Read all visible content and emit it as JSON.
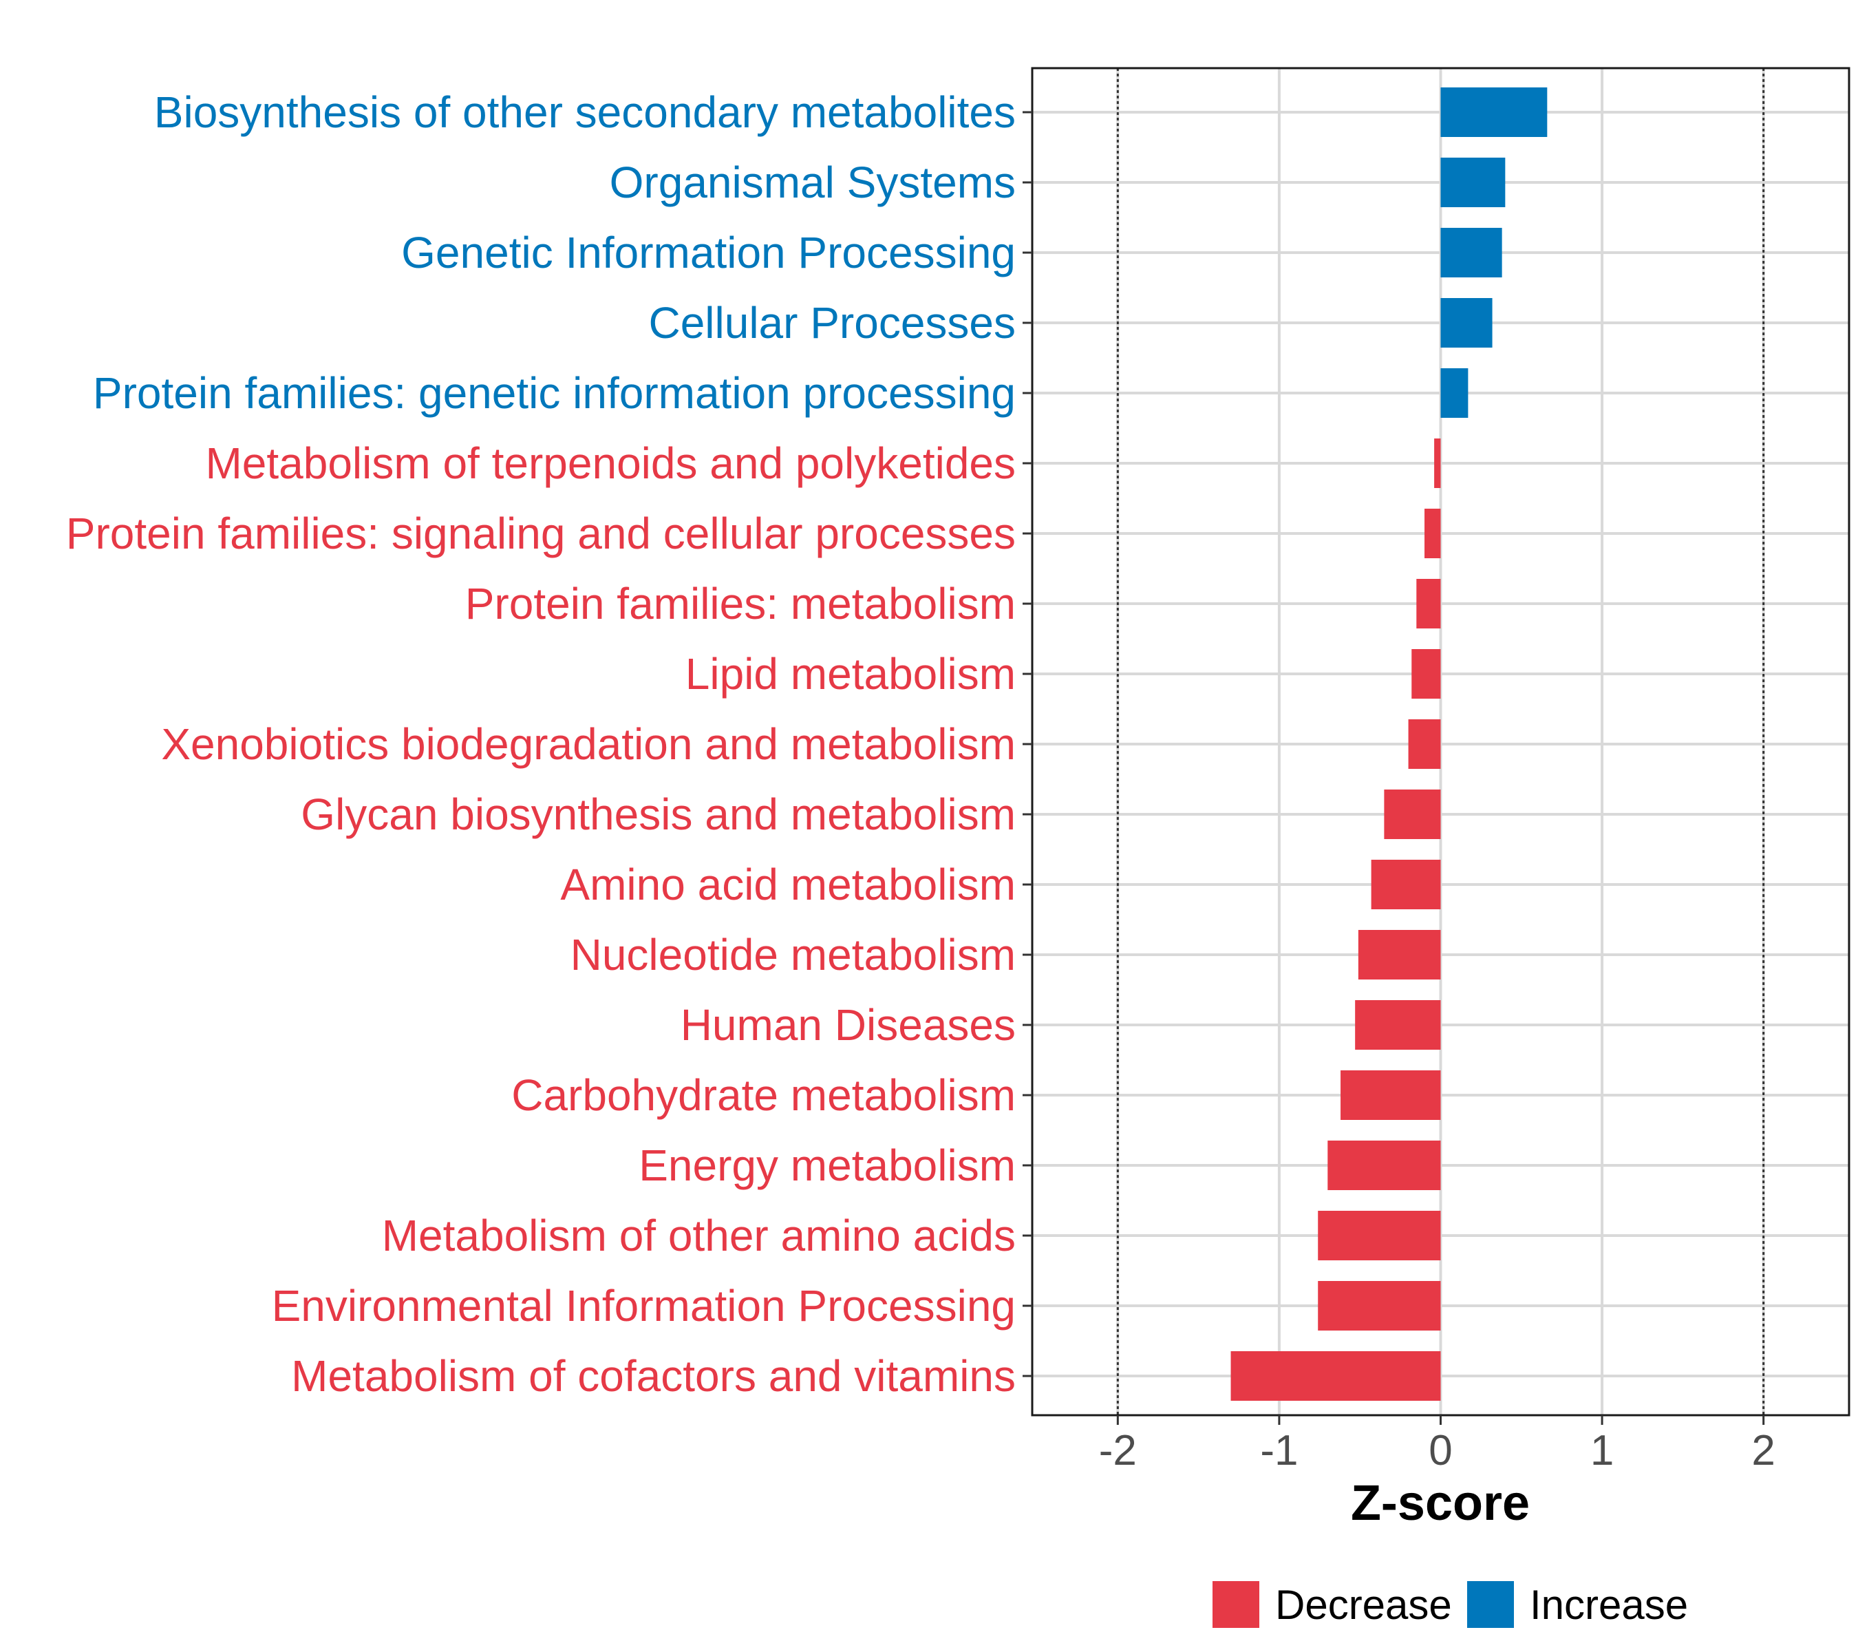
{
  "chart_data": {
    "type": "bar",
    "orientation": "horizontal",
    "categories": [
      "Biosynthesis of other secondary metabolites",
      "Organismal Systems",
      "Genetic Information Processing",
      "Cellular Processes",
      "Protein families: genetic information processing",
      "Metabolism of terpenoids and polyketides",
      "Protein families: signaling and cellular processes",
      "Protein families: metabolism",
      "Lipid metabolism",
      "Xenobiotics biodegradation and metabolism",
      "Glycan biosynthesis and metabolism",
      "Amino acid metabolism",
      "Nucleotide metabolism",
      "Human Diseases",
      "Carbohydrate metabolism",
      "Energy metabolism",
      "Metabolism of other amino acids",
      "Environmental Information Processing",
      "Metabolism of cofactors and vitamins"
    ],
    "values": [
      0.66,
      0.4,
      0.38,
      0.32,
      0.17,
      -0.04,
      -0.1,
      -0.15,
      -0.18,
      -0.2,
      -0.35,
      -0.43,
      -0.51,
      -0.53,
      -0.62,
      -0.7,
      -0.76,
      -0.76,
      -1.3
    ],
    "xlabel": "Z-score",
    "xlim": [
      -2.53,
      2.53
    ],
    "xticks": [
      "-2",
      "-1",
      "0",
      "1",
      "2"
    ],
    "xtick_values": [
      -2,
      -1,
      0,
      1,
      2
    ],
    "reference_lines": [
      -2,
      2
    ],
    "colors": {
      "Decrease": "#e63946",
      "Increase": "#0077bb"
    },
    "legend": [
      "Decrease",
      "Increase"
    ],
    "legend_position": "bottom"
  }
}
